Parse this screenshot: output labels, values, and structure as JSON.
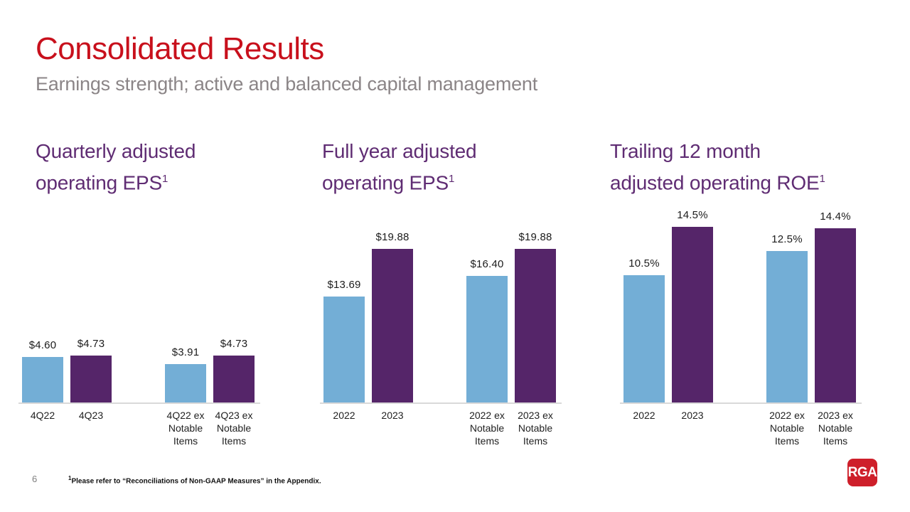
{
  "slide": {
    "title": "Consolidated Results",
    "subtitle": "Earnings strength; active and balanced capital management",
    "page_number": "6",
    "footnote": {
      "superscript": "1",
      "text": "Please refer to “Reconciliations of Non-GAAP Measures” in the Appendix."
    },
    "logo_text": "RGA"
  },
  "colors": {
    "title_red": "#c8101c",
    "subtitle_gray": "#8b8587",
    "chart_title_purple": "#5f2c73",
    "bar_blue": "#73aed6",
    "bar_purple": "#552569",
    "axis_line_gray": "#d9d9d9",
    "logo_red": "#ce1f2a"
  },
  "chart_data": [
    {
      "type": "bar",
      "title_lines": [
        "Quarterly adjusted",
        "operating EPS"
      ],
      "title_superscript": "1",
      "categories": [
        [
          "4Q22"
        ],
        [
          "4Q23"
        ],
        [
          "4Q22 ex",
          "Notable",
          "Items"
        ],
        [
          "4Q23 ex",
          "Notable",
          "Items"
        ]
      ],
      "values": [
        4.6,
        4.73,
        3.91,
        4.73
      ],
      "value_labels": [
        "$4.60",
        "$4.73",
        "$3.91",
        "$4.73"
      ],
      "bar_colors": [
        "#73aed6",
        "#552569",
        "#73aed6",
        "#552569"
      ],
      "xlabel": "",
      "ylabel": "",
      "ylim": [
        0,
        18
      ],
      "grid": false,
      "legend": false
    },
    {
      "type": "bar",
      "title_lines": [
        "Full year adjusted",
        "operating EPS"
      ],
      "title_superscript": "1",
      "categories": [
        [
          "2022"
        ],
        [
          "2023"
        ],
        [
          "2022 ex",
          "Notable",
          "Items"
        ],
        [
          "2023 ex",
          "Notable",
          "Items"
        ]
      ],
      "values": [
        13.69,
        19.88,
        16.4,
        19.88
      ],
      "value_labels": [
        "$13.69",
        "$19.88",
        "$16.40",
        "$19.88"
      ],
      "bar_colors": [
        "#73aed6",
        "#552569",
        "#73aed6",
        "#552569"
      ],
      "xlabel": "",
      "ylabel": "",
      "ylim": [
        0,
        23
      ],
      "grid": false,
      "legend": false
    },
    {
      "type": "bar",
      "title_lines": [
        "Trailing 12 month",
        "adjusted operating ROE"
      ],
      "title_superscript": "1",
      "categories": [
        [
          "2022"
        ],
        [
          "2023"
        ],
        [
          "2022 ex",
          "Notable",
          "Items"
        ],
        [
          "2023 ex",
          "Notable",
          "Items"
        ]
      ],
      "values": [
        10.5,
        14.5,
        12.5,
        14.4
      ],
      "value_labels": [
        "10.5%",
        "14.5%",
        "12.5%",
        "14.4%"
      ],
      "bar_colors": [
        "#73aed6",
        "#552569",
        "#73aed6",
        "#552569"
      ],
      "xlabel": "",
      "ylabel": "",
      "ylim": [
        0,
        14.7
      ],
      "grid": false,
      "legend": false
    }
  ]
}
